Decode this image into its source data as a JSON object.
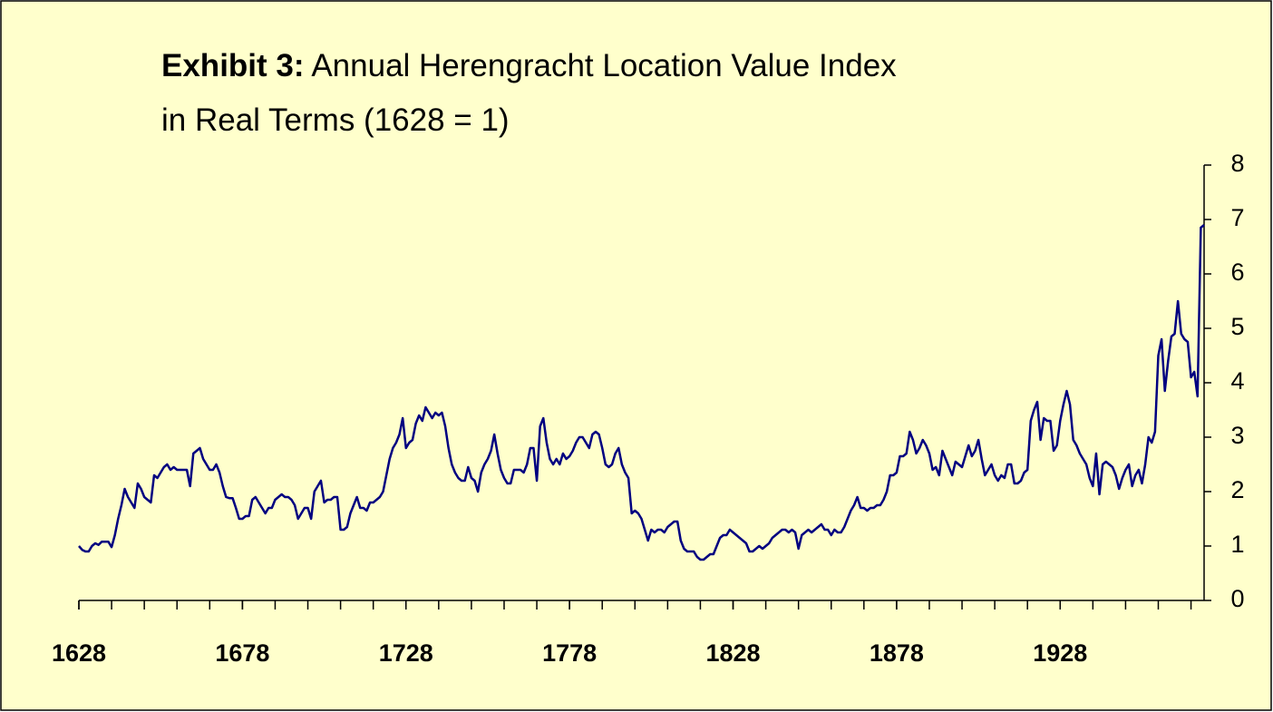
{
  "chart_data": {
    "type": "line",
    "title_lines": [
      {
        "bold": "Exhibit 3:",
        "text": "Annual Herengracht Location Value Index"
      },
      {
        "text": "in Real Terms (1628 = 1)"
      }
    ],
    "x": [
      1628,
      1629,
      1630,
      1631,
      1632,
      1633,
      1634,
      1635,
      1636,
      1637,
      1638,
      1639,
      1640,
      1641,
      1642,
      1643,
      1644,
      1645,
      1646,
      1647,
      1648,
      1649,
      1650,
      1651,
      1652,
      1653,
      1654,
      1655,
      1656,
      1657,
      1658,
      1659,
      1660,
      1661,
      1662,
      1663,
      1664,
      1665,
      1666,
      1667,
      1668,
      1669,
      1670,
      1671,
      1672,
      1673,
      1674,
      1675,
      1676,
      1677,
      1678,
      1679,
      1680,
      1681,
      1682,
      1683,
      1684,
      1685,
      1686,
      1687,
      1688,
      1689,
      1690,
      1691,
      1692,
      1693,
      1694,
      1695,
      1696,
      1697,
      1698,
      1699,
      1700,
      1701,
      1702,
      1703,
      1704,
      1705,
      1706,
      1707,
      1708,
      1709,
      1710,
      1711,
      1712,
      1713,
      1714,
      1715,
      1716,
      1717,
      1718,
      1719,
      1720,
      1721,
      1722,
      1723,
      1724,
      1725,
      1726,
      1727,
      1728,
      1729,
      1730,
      1731,
      1732,
      1733,
      1734,
      1735,
      1736,
      1737,
      1738,
      1739,
      1740,
      1741,
      1742,
      1743,
      1744,
      1745,
      1746,
      1747,
      1748,
      1749,
      1750,
      1751,
      1752,
      1753,
      1754,
      1755,
      1756,
      1757,
      1758,
      1759,
      1760,
      1761,
      1762,
      1763,
      1764,
      1765,
      1766,
      1767,
      1768,
      1769,
      1770,
      1771,
      1772,
      1773,
      1774,
      1775,
      1776,
      1777,
      1778,
      1779,
      1780,
      1781,
      1782,
      1783,
      1784,
      1785,
      1786,
      1787,
      1788,
      1789,
      1790,
      1791,
      1792,
      1793,
      1794,
      1795,
      1796,
      1797,
      1798,
      1799,
      1800,
      1801,
      1802,
      1803,
      1804,
      1805,
      1806,
      1807,
      1808,
      1809,
      1810,
      1811,
      1812,
      1813,
      1814,
      1815,
      1816,
      1817,
      1818,
      1819,
      1820,
      1821,
      1822,
      1823,
      1824,
      1825,
      1826,
      1827,
      1828,
      1829,
      1830,
      1831,
      1832,
      1833,
      1834,
      1835,
      1836,
      1837,
      1838,
      1839,
      1840,
      1841,
      1842,
      1843,
      1844,
      1845,
      1846,
      1847,
      1848,
      1849,
      1850,
      1851,
      1852,
      1853,
      1854,
      1855,
      1856,
      1857,
      1858,
      1859,
      1860,
      1861,
      1862,
      1863,
      1864,
      1865,
      1866,
      1867,
      1868,
      1869,
      1870,
      1871,
      1872,
      1873,
      1874,
      1875,
      1876,
      1877,
      1878,
      1879,
      1880,
      1881,
      1882,
      1883,
      1884,
      1885,
      1886,
      1887,
      1888,
      1889,
      1890,
      1891,
      1892,
      1893,
      1894,
      1895,
      1896,
      1897,
      1898,
      1899,
      1900,
      1901,
      1902,
      1903,
      1904,
      1905,
      1906,
      1907,
      1908,
      1909,
      1910,
      1911,
      1912,
      1913,
      1914,
      1915,
      1916,
      1917,
      1918,
      1919,
      1920,
      1921,
      1922,
      1923,
      1924,
      1925,
      1926,
      1927,
      1928,
      1929,
      1930,
      1931,
      1932,
      1933,
      1934,
      1935,
      1936,
      1937,
      1938,
      1939,
      1940,
      1941,
      1942,
      1943,
      1944,
      1945,
      1946,
      1947,
      1948,
      1949,
      1950,
      1951,
      1952,
      1953,
      1954,
      1955,
      1956,
      1957,
      1958,
      1959,
      1960,
      1961,
      1962,
      1963,
      1964,
      1965,
      1966,
      1967,
      1968,
      1969,
      1970,
      1971,
      1972
    ],
    "series": [
      {
        "color": "#000080",
        "values": [
          1.0,
          0.93,
          0.9,
          0.9,
          1.0,
          1.05,
          1.02,
          1.08,
          1.08,
          1.08,
          0.98,
          1.2,
          1.5,
          1.75,
          2.05,
          1.9,
          1.8,
          1.7,
          2.15,
          2.05,
          1.9,
          1.85,
          1.8,
          2.3,
          2.25,
          2.35,
          2.45,
          2.5,
          2.4,
          2.45,
          2.4,
          2.4,
          2.4,
          2.4,
          2.1,
          2.7,
          2.75,
          2.8,
          2.6,
          2.5,
          2.4,
          2.4,
          2.5,
          2.35,
          2.1,
          1.9,
          1.88,
          1.88,
          1.7,
          1.5,
          1.5,
          1.55,
          1.55,
          1.85,
          1.9,
          1.8,
          1.7,
          1.6,
          1.7,
          1.7,
          1.85,
          1.9,
          1.95,
          1.9,
          1.9,
          1.85,
          1.75,
          1.5,
          1.6,
          1.7,
          1.7,
          1.5,
          2.0,
          2.1,
          2.2,
          1.8,
          1.85,
          1.85,
          1.9,
          1.9,
          1.3,
          1.3,
          1.35,
          1.6,
          1.75,
          1.9,
          1.7,
          1.7,
          1.65,
          1.8,
          1.8,
          1.85,
          1.9,
          2.0,
          2.3,
          2.6,
          2.8,
          2.9,
          3.05,
          3.35,
          2.8,
          2.9,
          2.95,
          3.25,
          3.4,
          3.3,
          3.55,
          3.45,
          3.35,
          3.45,
          3.4,
          3.45,
          3.2,
          2.8,
          2.5,
          2.35,
          2.25,
          2.2,
          2.2,
          2.45,
          2.25,
          2.2,
          2.0,
          2.35,
          2.5,
          2.6,
          2.75,
          3.05,
          2.7,
          2.4,
          2.25,
          2.15,
          2.15,
          2.4,
          2.4,
          2.4,
          2.35,
          2.5,
          2.8,
          2.8,
          2.2,
          3.2,
          3.35,
          2.9,
          2.6,
          2.5,
          2.6,
          2.5,
          2.7,
          2.6,
          2.65,
          2.75,
          2.9,
          3.0,
          3.0,
          2.9,
          2.8,
          3.05,
          3.1,
          3.05,
          2.8,
          2.5,
          2.45,
          2.5,
          2.7,
          2.8,
          2.5,
          2.35,
          2.25,
          1.6,
          1.65,
          1.6,
          1.5,
          1.3,
          1.1,
          1.3,
          1.25,
          1.3,
          1.3,
          1.25,
          1.35,
          1.4,
          1.45,
          1.45,
          1.1,
          0.95,
          0.9,
          0.9,
          0.9,
          0.8,
          0.75,
          0.75,
          0.8,
          0.85,
          0.85,
          1.0,
          1.15,
          1.2,
          1.2,
          1.3,
          1.25,
          1.2,
          1.15,
          1.1,
          1.05,
          0.9,
          0.9,
          0.95,
          1.0,
          0.95,
          1.0,
          1.05,
          1.15,
          1.2,
          1.25,
          1.3,
          1.3,
          1.25,
          1.3,
          1.25,
          0.95,
          1.2,
          1.25,
          1.3,
          1.25,
          1.3,
          1.35,
          1.4,
          1.3,
          1.3,
          1.2,
          1.3,
          1.25,
          1.25,
          1.35,
          1.5,
          1.65,
          1.75,
          1.9,
          1.7,
          1.7,
          1.65,
          1.7,
          1.7,
          1.75,
          1.75,
          1.85,
          2.0,
          2.3,
          2.3,
          2.35,
          2.65,
          2.65,
          2.7,
          3.1,
          2.95,
          2.7,
          2.8,
          2.95,
          2.85,
          2.7,
          2.4,
          2.45,
          2.3,
          2.75,
          2.6,
          2.45,
          2.3,
          2.55,
          2.5,
          2.45,
          2.65,
          2.85,
          2.65,
          2.75,
          2.95,
          2.6,
          2.3,
          2.4,
          2.5,
          2.3,
          2.2,
          2.3,
          2.25,
          2.5,
          2.5,
          2.15,
          2.15,
          2.2,
          2.35,
          2.4,
          3.3,
          3.5,
          3.65,
          2.95,
          3.35,
          3.3,
          3.3,
          2.75,
          2.85,
          3.3,
          3.6,
          3.85,
          3.6,
          2.95,
          2.85,
          2.7,
          2.6,
          2.5,
          2.25,
          2.1,
          2.7,
          1.95,
          2.5,
          2.55,
          2.5,
          2.45,
          2.3,
          2.05,
          2.25,
          2.4,
          2.5,
          2.1,
          2.3,
          2.4,
          2.15,
          2.5,
          3.0,
          2.9,
          3.1,
          4.5,
          4.8,
          3.85,
          4.4,
          4.85,
          4.9,
          5.5,
          4.9,
          4.8,
          4.75,
          4.1,
          4.2,
          3.75,
          6.85,
          6.9
        ]
      }
    ],
    "xlim": [
      1628,
      1972
    ],
    "xticks": [
      1628,
      1678,
      1728,
      1778,
      1828,
      1878,
      1928
    ],
    "xminorticks": [
      1628,
      1638,
      1648,
      1658,
      1668,
      1678,
      1688,
      1698,
      1708,
      1718,
      1728,
      1738,
      1748,
      1758,
      1768,
      1778,
      1788,
      1798,
      1808,
      1818,
      1828,
      1838,
      1848,
      1858,
      1868,
      1878,
      1888,
      1898,
      1908,
      1918,
      1928,
      1938,
      1948,
      1958,
      1968
    ],
    "ylim": [
      0,
      8
    ],
    "yticks": [
      0,
      1,
      2,
      3,
      4,
      5,
      6,
      7,
      8
    ],
    "yaxis_side": "right",
    "grid": false,
    "background": "#ffffcc"
  }
}
